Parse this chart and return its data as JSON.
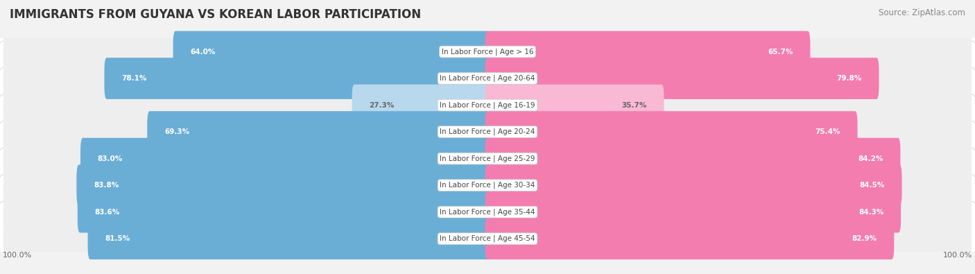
{
  "title": "IMMIGRANTS FROM GUYANA VS KOREAN LABOR PARTICIPATION",
  "source": "Source: ZipAtlas.com",
  "categories": [
    "In Labor Force | Age > 16",
    "In Labor Force | Age 20-64",
    "In Labor Force | Age 16-19",
    "In Labor Force | Age 20-24",
    "In Labor Force | Age 25-29",
    "In Labor Force | Age 30-34",
    "In Labor Force | Age 35-44",
    "In Labor Force | Age 45-54"
  ],
  "guyana_values": [
    64.0,
    78.1,
    27.3,
    69.3,
    83.0,
    83.8,
    83.6,
    81.5
  ],
  "korean_values": [
    65.7,
    79.8,
    35.7,
    75.4,
    84.2,
    84.5,
    84.3,
    82.9
  ],
  "guyana_color": "#6aaed6",
  "guyana_color_light": "#b8d8ee",
  "korean_color": "#f47db0",
  "korean_color_light": "#f9b8d4",
  "bg_color": "#f2f2f2",
  "row_bg_color": "#e8e8e8",
  "title_fontsize": 12,
  "source_fontsize": 8.5,
  "label_fontsize": 7.5,
  "value_fontsize": 7.5,
  "legend_fontsize": 9,
  "max_value": 100.0,
  "fig_width": 14.06,
  "fig_height": 3.95
}
